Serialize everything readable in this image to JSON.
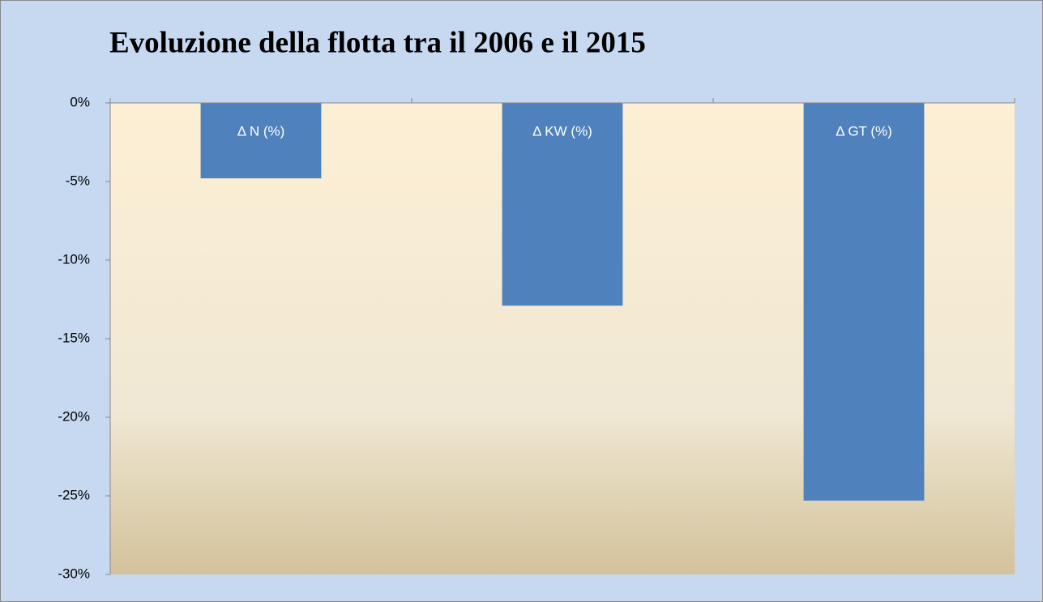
{
  "chart_data": {
    "type": "bar",
    "title": "Evoluzione della flotta tra il 2006 e il 2015",
    "categories": [
      "Δ N (%)",
      "Δ KW (%)",
      "Δ GT (%)"
    ],
    "values": [
      -4.8,
      -12.9,
      -25.3
    ],
    "color": "#4f81bd",
    "ylim": [
      -30,
      0
    ],
    "yticks": [
      {
        "value": 0,
        "label": "0%"
      },
      {
        "value": -5,
        "label": "-5%"
      },
      {
        "value": -10,
        "label": "-10%"
      },
      {
        "value": -15,
        "label": "-15%"
      },
      {
        "value": -20,
        "label": "-20%"
      },
      {
        "value": -25,
        "label": "-25%"
      },
      {
        "value": -30,
        "label": "-30%"
      }
    ],
    "grid": false
  }
}
